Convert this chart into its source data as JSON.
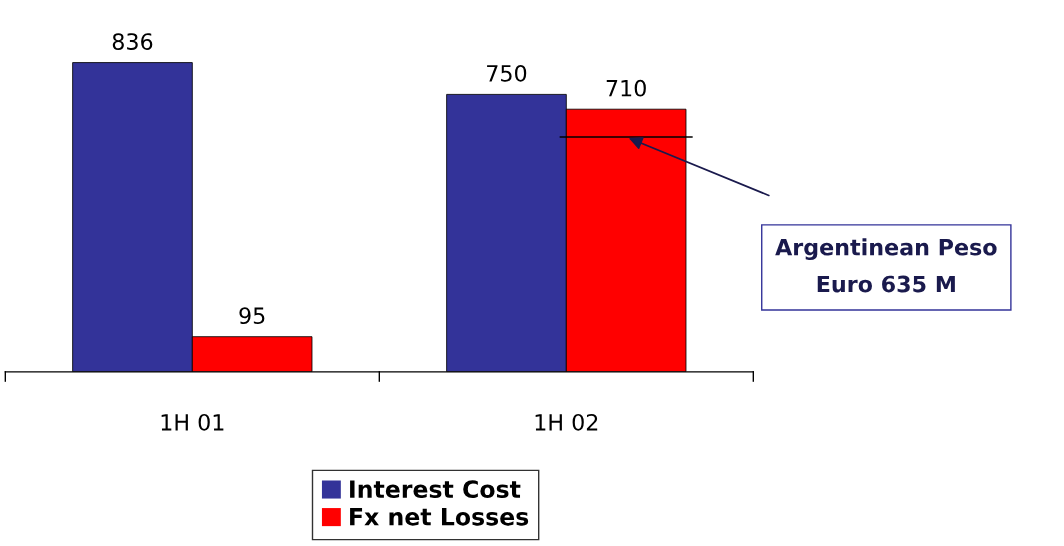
{
  "chart_data": {
    "type": "bar",
    "categories": [
      "1H 01",
      "1H 02"
    ],
    "series": [
      {
        "name": "Interest Cost",
        "color": "#333399",
        "values": [
          836,
          750
        ]
      },
      {
        "name": "Fx net Losses",
        "color": "#ff0000",
        "values": [
          95,
          710
        ]
      }
    ],
    "data_labels": true,
    "legend": "bottom",
    "grid": false,
    "ref_lines": [
      {
        "axis": "y",
        "value": 635,
        "color": "#000000"
      }
    ],
    "annotations": [
      "Argentinean Peso\nEuro 635 M"
    ]
  }
}
